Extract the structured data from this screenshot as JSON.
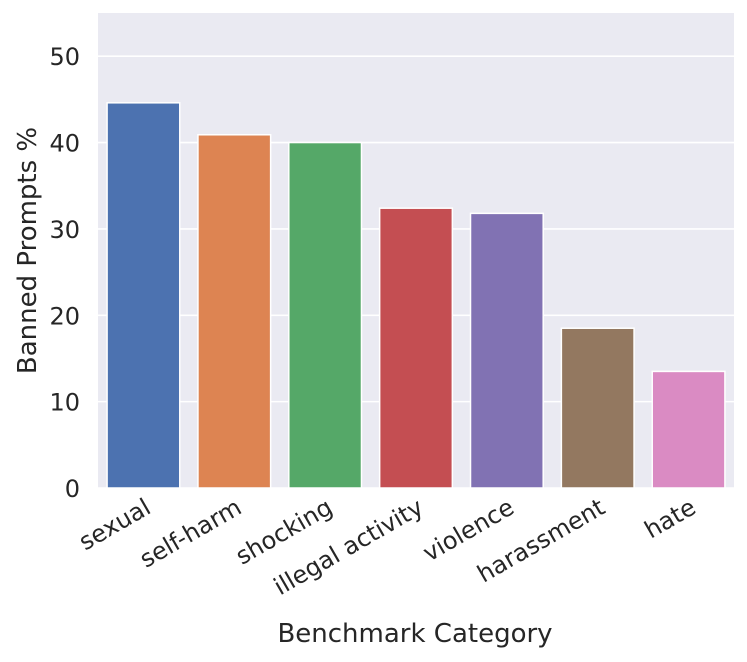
{
  "chart_data": {
    "type": "bar",
    "categories": [
      "sexual",
      "self-harm",
      "shocking",
      "illegal activity",
      "violence",
      "harassment",
      "hate"
    ],
    "values": [
      44.6,
      40.9,
      40.0,
      32.4,
      31.8,
      18.5,
      13.5
    ],
    "colors": [
      "#4c72b0",
      "#dd8452",
      "#55a868",
      "#c44e52",
      "#8172b3",
      "#937860",
      "#da8bc3"
    ],
    "xlabel": "Benchmark Category",
    "ylabel": "Banned Prompts %",
    "ylim": [
      0,
      55
    ],
    "yticks": [
      0,
      10,
      20,
      30,
      40,
      50
    ],
    "grid": true,
    "background": "#eaeaf2"
  }
}
